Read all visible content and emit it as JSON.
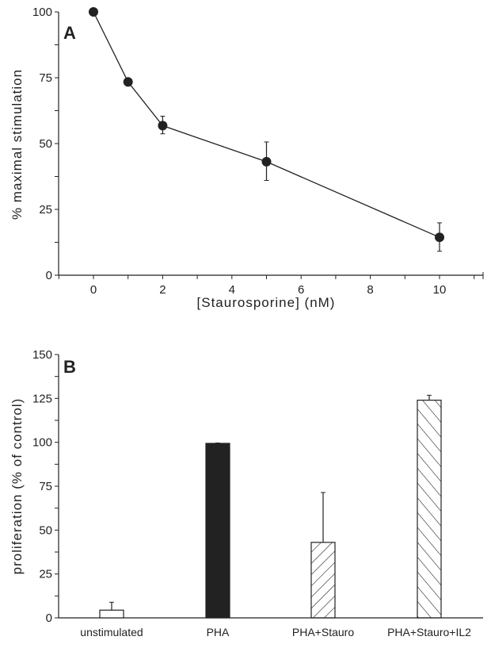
{
  "chart_data": [
    {
      "type": "line",
      "panel_label": "A",
      "xlabel": "[Staurosporine] (nM)",
      "ylabel": "% maximal stimulation",
      "xlim": [
        -1,
        11.2
      ],
      "ylim": [
        0,
        100
      ],
      "x_ticks": [
        0,
        2,
        4,
        6,
        8,
        10
      ],
      "y_ticks": [
        0,
        25,
        50,
        75,
        100
      ],
      "grid": false,
      "series": [
        {
          "x": [
            0,
            1,
            2,
            5,
            10
          ],
          "y": [
            100,
            73.4,
            56.8,
            43.1,
            14.4
          ],
          "error_low": [
            100,
            73.4,
            53.7,
            36,
            9.1
          ],
          "error_high": [
            100,
            73.4,
            60.4,
            50.6,
            19.9
          ],
          "marker": "filled-circle",
          "color": "#222222"
        }
      ]
    },
    {
      "type": "bar",
      "panel_label": "B",
      "xlabel": "",
      "ylabel": "proliferation (% of control)",
      "ylim": [
        0,
        150
      ],
      "y_ticks": [
        0,
        25,
        50,
        75,
        100,
        125,
        150
      ],
      "grid": false,
      "categories": [
        "unstimulated",
        "PHA",
        "PHA+Stauro",
        "PHA+Stauro+IL2"
      ],
      "values": [
        4.4,
        99.4,
        43,
        124
      ],
      "error_high": [
        8.9,
        99.6,
        71.4,
        126.8
      ],
      "fills": [
        "open",
        "solid",
        "hatch-backslash",
        "hatch-slash"
      ],
      "color": "#222222"
    }
  ]
}
